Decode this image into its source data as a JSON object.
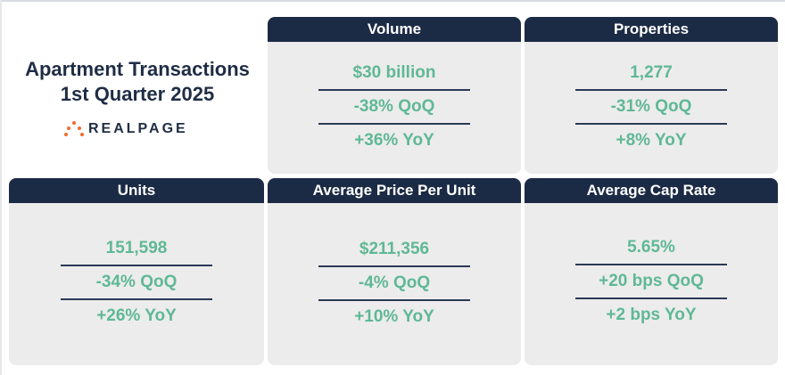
{
  "title": {
    "line1": "Apartment Transactions",
    "line2": "1st Quarter 2025"
  },
  "logo": {
    "text": "REALPAGE",
    "mark_color": "#f26a2e"
  },
  "colors": {
    "header_bg": "#1c2b45",
    "card_bg": "#ececec",
    "value": "#5fb896",
    "title": "#1f2d45"
  },
  "cards": {
    "volume": {
      "header": "Volume",
      "values": [
        "$30 billion",
        "-38% QoQ",
        "+36% YoY"
      ]
    },
    "properties": {
      "header": "Properties",
      "values": [
        "1,277",
        "-31% QoQ",
        "+8% YoY"
      ]
    },
    "units": {
      "header": "Units",
      "values": [
        "151,598",
        "-34% QoQ",
        "+26% YoY"
      ]
    },
    "avg_price": {
      "header": "Average Price Per Unit",
      "values": [
        "$211,356",
        "-4% QoQ",
        "+10% YoY"
      ]
    },
    "cap_rate": {
      "header": "Average Cap Rate",
      "values": [
        "5.65%",
        "+20 bps QoQ",
        "+2 bps YoY"
      ]
    }
  }
}
